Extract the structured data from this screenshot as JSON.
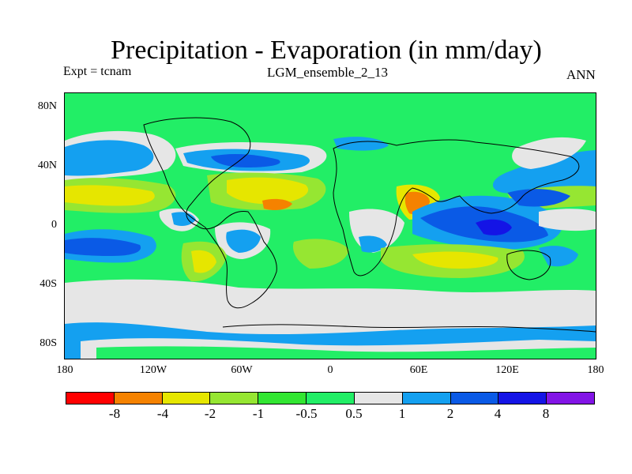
{
  "title": "Precipitation - Evaporation (in mm/day)",
  "experiment_label": "Expt = tcnam",
  "ensemble_label": "LGM_ensemble_2_13",
  "season_label": "ANN",
  "lat_labels": [
    "80N",
    "40N",
    "0",
    "40S",
    "80S"
  ],
  "lon_labels": [
    "180",
    "120W",
    "60W",
    "0",
    "60E",
    "120E",
    "180"
  ],
  "colors": {
    "c0": "#ff0000",
    "c1": "#f58200",
    "c2": "#e6e600",
    "c3": "#96e632",
    "c4": "#32e632",
    "c5": "#22ee66",
    "c6": "#e6e6e6",
    "c7": "#14a0f0",
    "c8": "#0a5ae6",
    "c9": "#1414e6",
    "c10": "#8214e6"
  },
  "colorbar": {
    "colors": [
      "#ff0000",
      "#f58200",
      "#e6e600",
      "#96e632",
      "#32e632",
      "#22ee66",
      "#e6e6e6",
      "#14a0f0",
      "#0a5ae6",
      "#1414e6",
      "#8214e6"
    ],
    "labels": [
      "-8",
      "-4",
      "-2",
      "-1",
      "-0.5",
      "0.5",
      "1",
      "2",
      "4",
      "8"
    ]
  }
}
